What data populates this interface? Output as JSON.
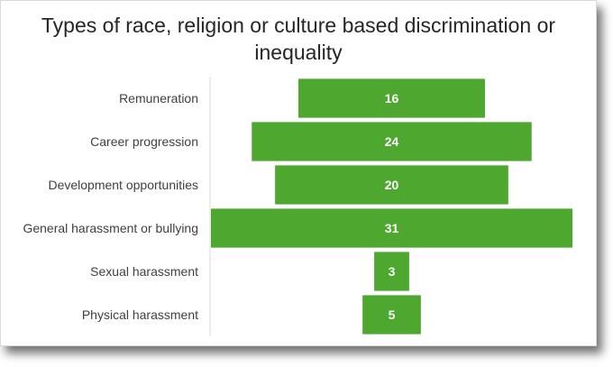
{
  "chart_data": {
    "type": "bar",
    "orientation": "horizontal-funnel",
    "title": "Types of race, religion or culture based discrimination or inequality",
    "categories": [
      "Remuneration",
      "Career progression",
      "Development opportunities",
      "General harassment or bullying",
      "Sexual harassment",
      "Physical harassment"
    ],
    "values": [
      16,
      24,
      20,
      31,
      3,
      5
    ],
    "data_labels": true,
    "legend": "none",
    "grid": false,
    "bar_color": "#4ea72e",
    "xlim": [
      0,
      31
    ]
  }
}
